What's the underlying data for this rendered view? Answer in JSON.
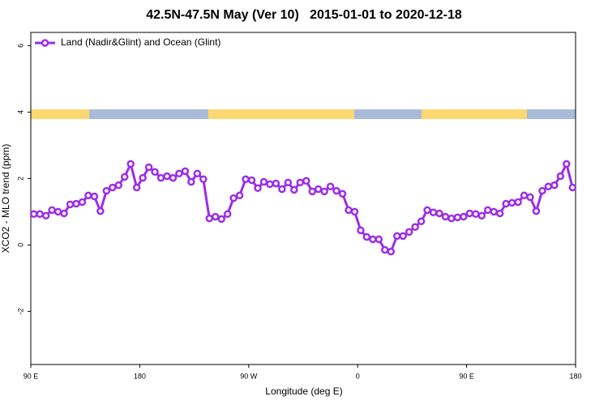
{
  "chart_data": {
    "type": "line",
    "title": "42.5N-47.5N May (Ver 10)   2015-01-01 to 2020-12-18",
    "xlabel": "Longitude (deg E)",
    "ylabel": "XCO2 - MLO trend (ppm)",
    "xlim": [
      90,
      540
    ],
    "ylim": [
      -3.6,
      6.4
    ],
    "xticks": [
      {
        "value": 90,
        "label": "90 E"
      },
      180,
      {
        "value": 270,
        "label": "90 W"
      },
      {
        "value": 360,
        "label": "0"
      },
      {
        "value": 450,
        "label": "90 E"
      },
      {
        "value": 540,
        "label": "180"
      }
    ],
    "yticks": [
      -2,
      0,
      2,
      4,
      6
    ],
    "legend": "upper left",
    "x": [
      92.5,
      97.5,
      102.5,
      107.5,
      112.5,
      117.5,
      122.5,
      127.5,
      132.5,
      137.5,
      142.5,
      147.5,
      152.5,
      157.5,
      162.5,
      167.5,
      172.5,
      177.5,
      182.5,
      187.5,
      192.5,
      197.5,
      202.5,
      207.5,
      212.5,
      217.5,
      222.5,
      227.5,
      232.5,
      237.5,
      242.5,
      247.5,
      252.5,
      257.5,
      262.5,
      267.5,
      272.5,
      277.5,
      282.5,
      287.5,
      292.5,
      297.5,
      302.5,
      307.5,
      312.5,
      317.5,
      322.5,
      327.5,
      332.5,
      337.5,
      342.5,
      347.5,
      352.5,
      357.5,
      362.5,
      367.5,
      372.5,
      377.5,
      382.5,
      387.5,
      392.5,
      397.5,
      402.5,
      407.5,
      412.5,
      417.5,
      422.5,
      427.5,
      432.5,
      437.5,
      442.5,
      447.5,
      452.5,
      457.5,
      462.5,
      467.5,
      472.5,
      477.5,
      482.5,
      487.5,
      492.5,
      497.5,
      502.5,
      507.5,
      512.5,
      517.5,
      522.5,
      527.5,
      532.5,
      537.5
    ],
    "series": [
      {
        "name": "Land (Nadir&Glint) and Ocean (Glint)",
        "color": "#9b2ee6",
        "values": [
          0.93,
          0.93,
          0.88,
          1.05,
          1.0,
          0.95,
          1.22,
          1.24,
          1.29,
          1.49,
          1.46,
          1.02,
          1.63,
          1.73,
          1.8,
          2.05,
          2.44,
          1.73,
          2.02,
          2.34,
          2.2,
          2.02,
          2.07,
          2.02,
          2.15,
          2.22,
          1.9,
          2.15,
          1.98,
          0.8,
          0.85,
          0.78,
          0.93,
          1.41,
          1.49,
          1.98,
          1.95,
          1.71,
          1.9,
          1.83,
          1.85,
          1.68,
          1.88,
          1.66,
          1.88,
          1.93,
          1.61,
          1.68,
          1.61,
          1.76,
          1.63,
          1.54,
          1.05,
          1.0,
          0.44,
          0.24,
          0.17,
          0.17,
          -0.15,
          -0.2,
          0.27,
          0.27,
          0.39,
          0.54,
          0.71,
          1.05,
          0.98,
          0.95,
          0.85,
          0.8,
          0.83,
          0.85,
          0.95,
          0.93,
          0.88,
          1.05,
          1.0,
          0.95,
          1.24,
          1.27,
          1.29,
          1.49,
          1.44,
          1.02,
          1.63,
          1.76,
          1.8,
          2.07,
          2.44,
          1.73
        ]
      }
    ]
  }
}
